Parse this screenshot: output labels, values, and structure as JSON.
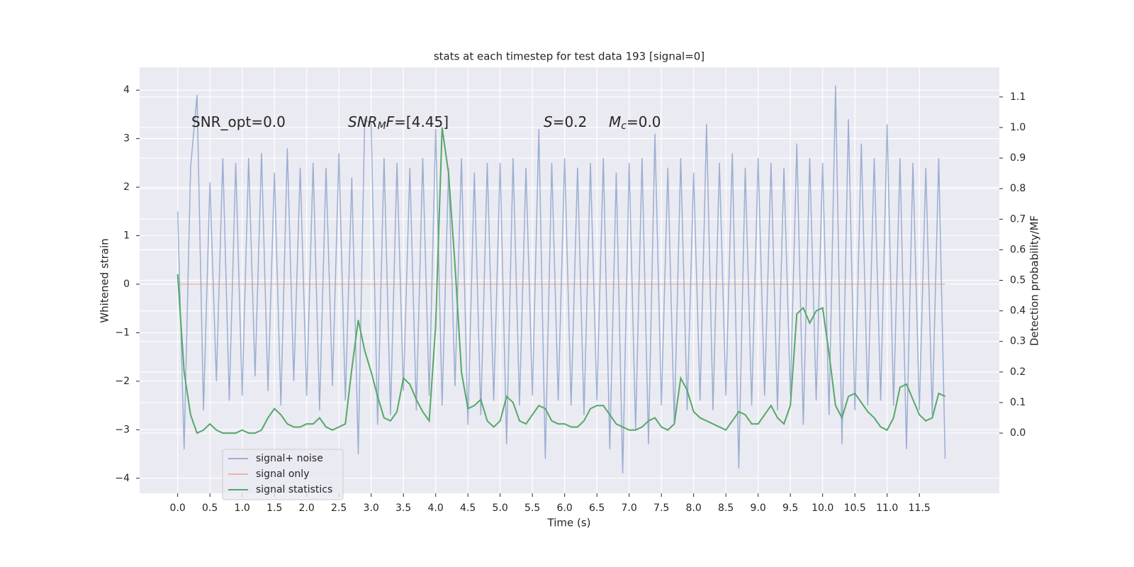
{
  "chart_data": {
    "type": "line",
    "title": "stats at each timestep for test data 193 [signal=0]",
    "x_label": "Time (s)",
    "y_label": "Whitened strain",
    "y2_label": "Detection probability/MF",
    "annotations": [
      [
        "SNR_opt=0.0"
      ],
      [
        "SNR",
        "M",
        "F",
        "=[4.45]"
      ],
      [
        "S",
        "=0.2"
      ],
      [
        "M",
        "c",
        "=0.0"
      ]
    ],
    "x": [
      0.0,
      0.1,
      0.2,
      0.3,
      0.4,
      0.5,
      0.6,
      0.7,
      0.8,
      0.9,
      1.0,
      1.1,
      1.2,
      1.3,
      1.4,
      1.5,
      1.6,
      1.7,
      1.8,
      1.9,
      2.0,
      2.1,
      2.2,
      2.3,
      2.4,
      2.5,
      2.6,
      2.7,
      2.8,
      2.9,
      3.0,
      3.1,
      3.2,
      3.3,
      3.4,
      3.5,
      3.6,
      3.7,
      3.8,
      3.9,
      4.0,
      4.1,
      4.2,
      4.3,
      4.4,
      4.5,
      4.6,
      4.7,
      4.8,
      4.9,
      5.0,
      5.1,
      5.2,
      5.3,
      5.4,
      5.5,
      5.6,
      5.7,
      5.8,
      5.9,
      6.0,
      6.1,
      6.2,
      6.3,
      6.4,
      6.5,
      6.6,
      6.7,
      6.8,
      6.9,
      7.0,
      7.1,
      7.2,
      7.3,
      7.4,
      7.5,
      7.6,
      7.7,
      7.8,
      7.9,
      8.0,
      8.1,
      8.2,
      8.3,
      8.4,
      8.5,
      8.6,
      8.7,
      8.8,
      8.9,
      9.0,
      9.1,
      9.2,
      9.3,
      9.4,
      9.5,
      9.6,
      9.7,
      9.8,
      9.9,
      10.0,
      10.1,
      10.2,
      10.3,
      10.4,
      10.5,
      10.6,
      10.7,
      10.8,
      10.9,
      11.0,
      11.1,
      11.2,
      11.3,
      11.4,
      11.5,
      11.6,
      11.7,
      11.8,
      11.9
    ],
    "series": [
      {
        "name": "signal+ noise",
        "color": "#4c72b0",
        "opacity": 0.5,
        "values": [
          1.5,
          -3.4,
          2.4,
          3.9,
          -2.6,
          2.1,
          -2.0,
          2.6,
          -2.4,
          2.5,
          -2.3,
          2.6,
          -1.9,
          2.7,
          -2.2,
          2.3,
          -2.5,
          2.8,
          -2.0,
          2.4,
          -2.3,
          2.5,
          -2.6,
          2.4,
          -2.1,
          2.7,
          -2.4,
          2.2,
          -3.5,
          3.4,
          3.3,
          -2.9,
          2.6,
          -2.7,
          2.5,
          -2.2,
          2.4,
          -2.6,
          2.6,
          -2.3,
          3.2,
          -2.5,
          2.4,
          -2.1,
          2.6,
          -2.9,
          2.3,
          -2.7,
          2.5,
          -2.4,
          2.5,
          -3.3,
          2.6,
          -2.5,
          2.4,
          -2.3,
          3.2,
          -3.6,
          2.5,
          -2.4,
          2.6,
          -2.5,
          2.4,
          -2.7,
          2.5,
          -2.4,
          2.6,
          -3.4,
          2.3,
          -3.9,
          2.5,
          -3.0,
          2.6,
          -3.3,
          3.1,
          -2.5,
          2.4,
          -2.9,
          2.6,
          -2.6,
          2.3,
          -2.4,
          3.3,
          -2.6,
          2.5,
          -2.3,
          2.7,
          -3.8,
          2.4,
          -2.5,
          2.6,
          -2.3,
          2.5,
          -2.6,
          2.4,
          -2.3,
          2.9,
          -2.9,
          2.6,
          -2.4,
          2.5,
          -2.7,
          4.1,
          -3.3,
          3.4,
          -2.6,
          2.9,
          -2.5,
          2.6,
          -2.4,
          3.3,
          -2.5,
          2.6,
          -3.4,
          2.5,
          -2.6,
          2.4,
          -2.7,
          2.6,
          -3.6
        ]
      },
      {
        "name": "signal only",
        "color": "#dd8452",
        "opacity": 0.5,
        "x": [
          0.0,
          11.9
        ],
        "values": [
          0,
          0
        ]
      },
      {
        "name": "signal statistics",
        "color": "#55a868",
        "opacity": 1,
        "axis": "y2",
        "values": [
          0.52,
          0.2,
          0.06,
          0.0,
          0.01,
          0.03,
          0.01,
          0.0,
          0.0,
          0.0,
          0.01,
          0.0,
          0.0,
          0.01,
          0.05,
          0.08,
          0.06,
          0.03,
          0.02,
          0.02,
          0.03,
          0.03,
          0.05,
          0.02,
          0.01,
          0.02,
          0.03,
          0.21,
          0.37,
          0.27,
          0.2,
          0.12,
          0.05,
          0.04,
          0.07,
          0.18,
          0.16,
          0.11,
          0.07,
          0.04,
          0.35,
          1.0,
          0.85,
          0.55,
          0.2,
          0.08,
          0.09,
          0.11,
          0.04,
          0.02,
          0.04,
          0.12,
          0.1,
          0.04,
          0.03,
          0.06,
          0.09,
          0.08,
          0.04,
          0.03,
          0.03,
          0.02,
          0.02,
          0.04,
          0.08,
          0.09,
          0.09,
          0.06,
          0.03,
          0.02,
          0.01,
          0.01,
          0.02,
          0.04,
          0.05,
          0.02,
          0.01,
          0.03,
          0.18,
          0.14,
          0.07,
          0.05,
          0.04,
          0.03,
          0.02,
          0.01,
          0.04,
          0.07,
          0.06,
          0.03,
          0.03,
          0.06,
          0.09,
          0.05,
          0.03,
          0.09,
          0.39,
          0.41,
          0.36,
          0.4,
          0.41,
          0.26,
          0.09,
          0.05,
          0.12,
          0.13,
          0.1,
          0.07,
          0.05,
          0.02,
          0.01,
          0.05,
          0.15,
          0.16,
          0.11,
          0.06,
          0.04,
          0.05,
          0.13,
          0.12
        ]
      }
    ],
    "xlim": [
      -0.59,
      12.74
    ],
    "ylim": [
      -4.31,
      4.47
    ],
    "y2lim": [
      -0.197,
      1.197
    ],
    "xticks": [
      {
        "value": 0,
        "label": "0.0"
      },
      0.5,
      {
        "value": 1,
        "label": "1.0"
      },
      1.5,
      {
        "value": 2,
        "label": "2.0"
      },
      2.5,
      {
        "value": 3,
        "label": "3.0"
      },
      3.5,
      {
        "value": 4,
        "label": "4.0"
      },
      4.5,
      {
        "value": 5,
        "label": "5.0"
      },
      5.5,
      {
        "value": 6,
        "label": "6.0"
      },
      6.5,
      {
        "value": 7,
        "label": "7.0"
      },
      7.5,
      {
        "value": 8,
        "label": "8.0"
      },
      8.5,
      {
        "value": 9,
        "label": "9.0"
      },
      9.5,
      {
        "value": 10,
        "label": "10.0"
      },
      10.5,
      {
        "value": 11,
        "label": "11.0"
      },
      11.5
    ],
    "yticks": [
      {
        "value": -4,
        "label": "−4"
      },
      {
        "value": -3,
        "label": "−3"
      },
      {
        "value": -2,
        "label": "−2"
      },
      {
        "value": -1,
        "label": "−1"
      },
      0,
      1,
      2,
      3,
      4
    ],
    "y2ticks": [
      {
        "value": 0,
        "label": "0.0"
      },
      0.1,
      0.2,
      0.3,
      0.4,
      0.5,
      0.6,
      0.7,
      0.8,
      0.9,
      {
        "value": 1,
        "label": "1.0"
      },
      1.1
    ],
    "grid": true,
    "background": "#eaeaf2",
    "legend": "lower left"
  }
}
